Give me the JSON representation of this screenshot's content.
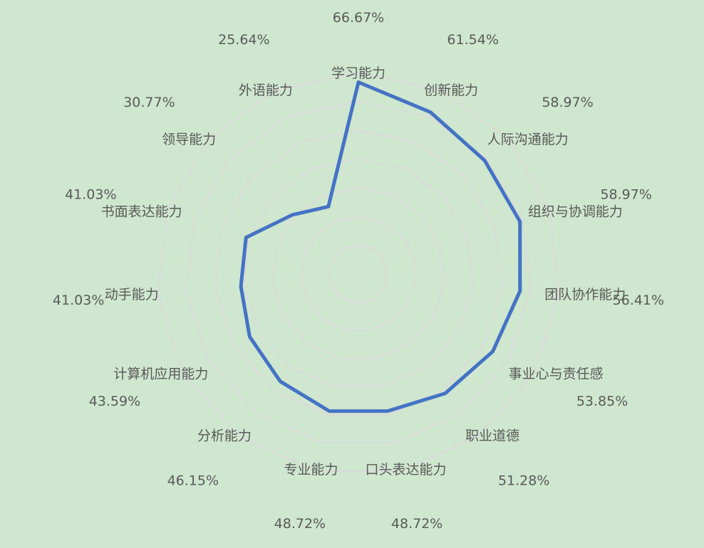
{
  "chart_data": {
    "type": "radar",
    "categories": [
      "学习能力",
      "创新能力",
      "人际沟通能力",
      "组织与协调能力",
      "团队协作能力",
      "事业心与责任感",
      "职业道德",
      "口头表达能力",
      "专业能力",
      "分析能力",
      "计算机应用能力",
      "动手能力",
      "书面表达能力",
      "领导能力",
      "外语能力"
    ],
    "series": [
      {
        "color": "#4472c4",
        "values": [
          66.67,
          61.54,
          58.97,
          58.97,
          56.41,
          53.85,
          51.28,
          48.72,
          48.72,
          46.15,
          43.59,
          41.03,
          41.03,
          30.77,
          25.64
        ],
        "value_labels": [
          "66.67%",
          "61.54%",
          "58.97%",
          "58.97%",
          "56.41%",
          "53.85%",
          "51.28%",
          "48.72%",
          "48.72%",
          "46.15%",
          "43.59%",
          "41.03%",
          "41.03%",
          "30.77%",
          "25.64%"
        ]
      }
    ],
    "ylim": [
      0,
      70
    ],
    "yticks": [
      0,
      10,
      20,
      30,
      40,
      50,
      60,
      70
    ],
    "grid": true
  }
}
